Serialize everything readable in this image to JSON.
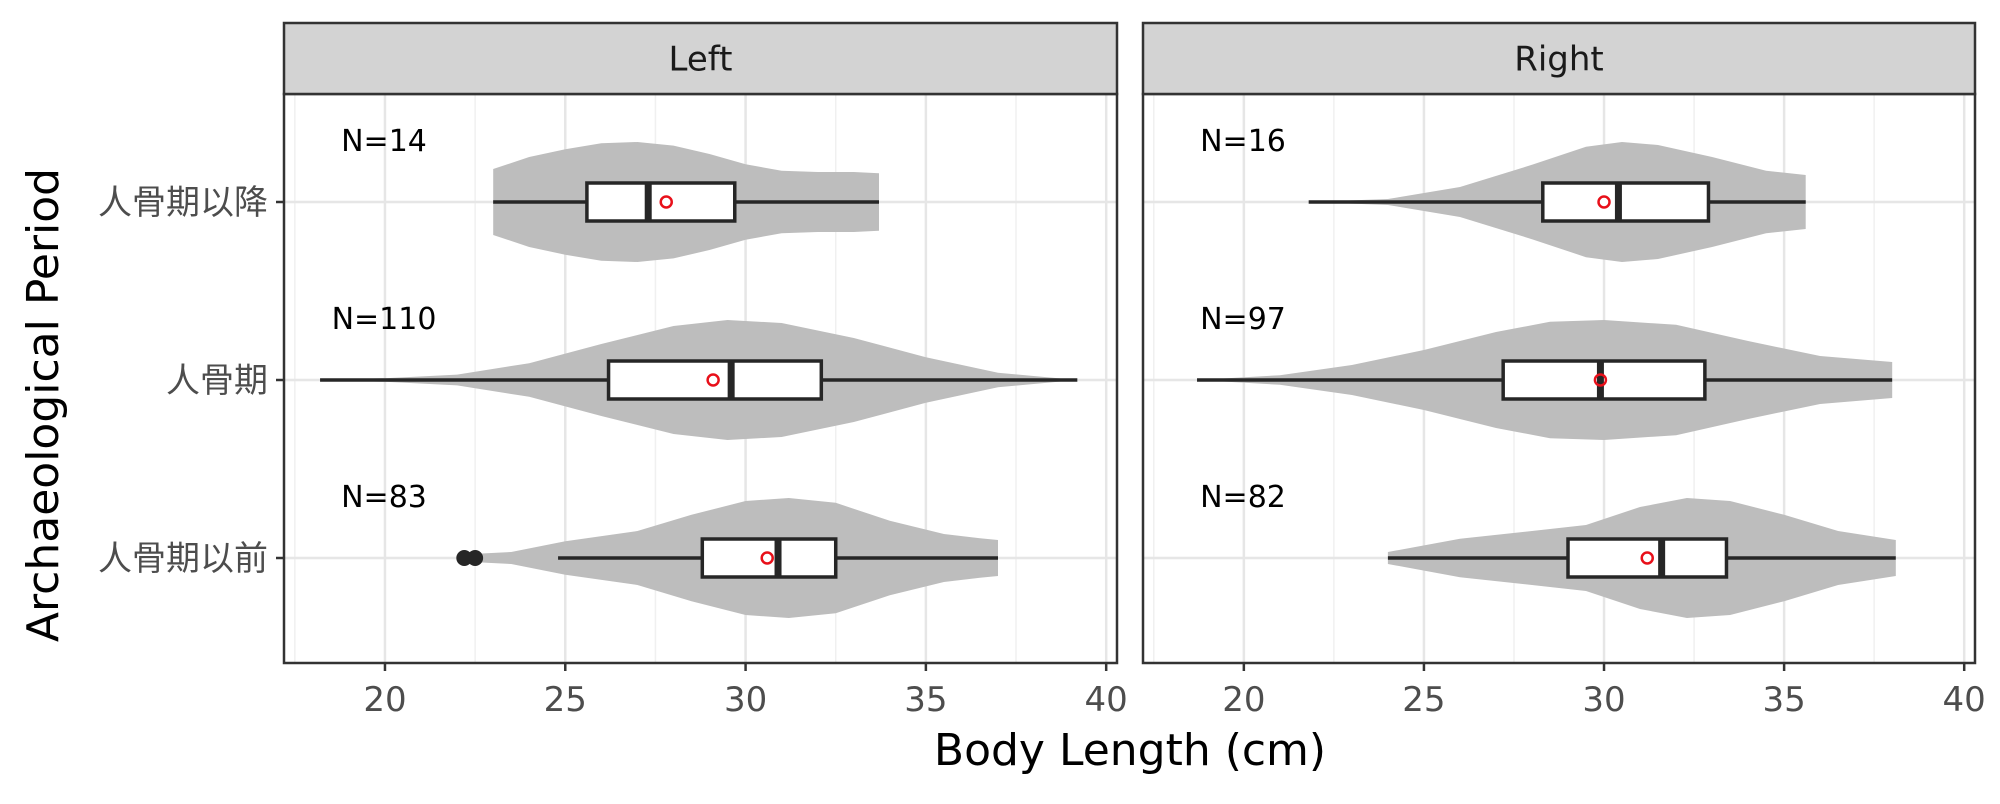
{
  "chart_data": {
    "type": "violin",
    "xlabel": "Body Length (cm)",
    "ylabel": "Archaeological Period",
    "xlim": [
      17.2,
      40.3
    ],
    "x_ticks": [
      20,
      25,
      30,
      35,
      40
    ],
    "categories": [
      "人骨期以降",
      "人骨期",
      "人骨期以前"
    ],
    "grid": true,
    "colors": {
      "violin": "#bdbdbd",
      "box_fill": "#ffffff",
      "box_line": "#262626",
      "mean_marker": "#e8101a",
      "outlier": "#262626",
      "strip_bg": "#d3d3d3"
    },
    "panels": [
      {
        "name": "Left",
        "groups": [
          {
            "category": "人骨期以降",
            "n_label": "N=14",
            "min": 23.0,
            "q1": 25.6,
            "median": 27.3,
            "q3": 29.7,
            "max": 33.7,
            "mean": 27.8,
            "outliers": [],
            "density": [
              [
                23.0,
                0.55
              ],
              [
                24.0,
                0.75
              ],
              [
                25.0,
                0.88
              ],
              [
                26.0,
                0.98
              ],
              [
                27.0,
                1.0
              ],
              [
                28.0,
                0.94
              ],
              [
                29.0,
                0.8
              ],
              [
                30.0,
                0.63
              ],
              [
                31.0,
                0.52
              ],
              [
                32.0,
                0.5
              ],
              [
                33.0,
                0.5
              ],
              [
                33.7,
                0.48
              ]
            ]
          },
          {
            "category": "人骨期",
            "n_label": "N=110",
            "min": 18.2,
            "q1": 26.2,
            "median": 29.6,
            "q3": 32.1,
            "max": 39.2,
            "mean": 29.1,
            "outliers": [],
            "density": [
              [
                18.2,
                0.0
              ],
              [
                20.0,
                0.03
              ],
              [
                22.0,
                0.09
              ],
              [
                24.0,
                0.28
              ],
              [
                26.0,
                0.6
              ],
              [
                28.0,
                0.9
              ],
              [
                29.5,
                1.0
              ],
              [
                31.0,
                0.95
              ],
              [
                33.0,
                0.7
              ],
              [
                35.0,
                0.38
              ],
              [
                37.0,
                0.12
              ],
              [
                39.2,
                0.0
              ]
            ]
          },
          {
            "category": "人骨期以前",
            "n_label": "N=83",
            "min": 24.8,
            "q1": 28.8,
            "median": 30.9,
            "q3": 32.5,
            "max": 37.0,
            "mean": 30.6,
            "outliers": [
              22.2,
              22.5
            ],
            "density": [
              [
                22.2,
                0.06
              ],
              [
                23.5,
                0.1
              ],
              [
                25.0,
                0.28
              ],
              [
                27.0,
                0.45
              ],
              [
                28.5,
                0.72
              ],
              [
                30.0,
                0.95
              ],
              [
                31.2,
                1.0
              ],
              [
                32.5,
                0.92
              ],
              [
                34.0,
                0.62
              ],
              [
                35.5,
                0.4
              ],
              [
                36.5,
                0.33
              ],
              [
                37.0,
                0.3
              ]
            ]
          }
        ]
      },
      {
        "name": "Right",
        "groups": [
          {
            "category": "人骨期以降",
            "n_label": "N=16",
            "min": 21.8,
            "q1": 28.3,
            "median": 30.4,
            "q3": 32.9,
            "max": 35.6,
            "mean": 30.0,
            "outliers": [],
            "density": [
              [
                21.8,
                0.0
              ],
              [
                24.0,
                0.05
              ],
              [
                26.0,
                0.25
              ],
              [
                28.0,
                0.62
              ],
              [
                29.5,
                0.92
              ],
              [
                30.5,
                1.0
              ],
              [
                31.5,
                0.95
              ],
              [
                33.0,
                0.75
              ],
              [
                34.5,
                0.52
              ],
              [
                35.6,
                0.45
              ]
            ]
          },
          {
            "category": "人骨期",
            "n_label": "N=97",
            "min": 18.7,
            "q1": 27.2,
            "median": 29.9,
            "q3": 32.8,
            "max": 38.0,
            "mean": 29.9,
            "outliers": [],
            "density": [
              [
                18.7,
                0.0
              ],
              [
                21.0,
                0.08
              ],
              [
                23.0,
                0.25
              ],
              [
                25.0,
                0.5
              ],
              [
                27.0,
                0.8
              ],
              [
                28.5,
                0.97
              ],
              [
                30.0,
                1.0
              ],
              [
                32.0,
                0.92
              ],
              [
                34.0,
                0.65
              ],
              [
                36.0,
                0.4
              ],
              [
                38.0,
                0.3
              ]
            ]
          },
          {
            "category": "人骨期以前",
            "n_label": "N=82",
            "min": 24.0,
            "q1": 29.0,
            "median": 31.6,
            "q3": 33.4,
            "max": 38.1,
            "mean": 31.2,
            "outliers": [],
            "density": [
              [
                24.0,
                0.1
              ],
              [
                26.0,
                0.32
              ],
              [
                28.0,
                0.45
              ],
              [
                29.5,
                0.55
              ],
              [
                31.0,
                0.85
              ],
              [
                32.3,
                1.0
              ],
              [
                33.5,
                0.95
              ],
              [
                35.0,
                0.72
              ],
              [
                36.5,
                0.45
              ],
              [
                38.1,
                0.3
              ]
            ]
          }
        ]
      }
    ]
  }
}
